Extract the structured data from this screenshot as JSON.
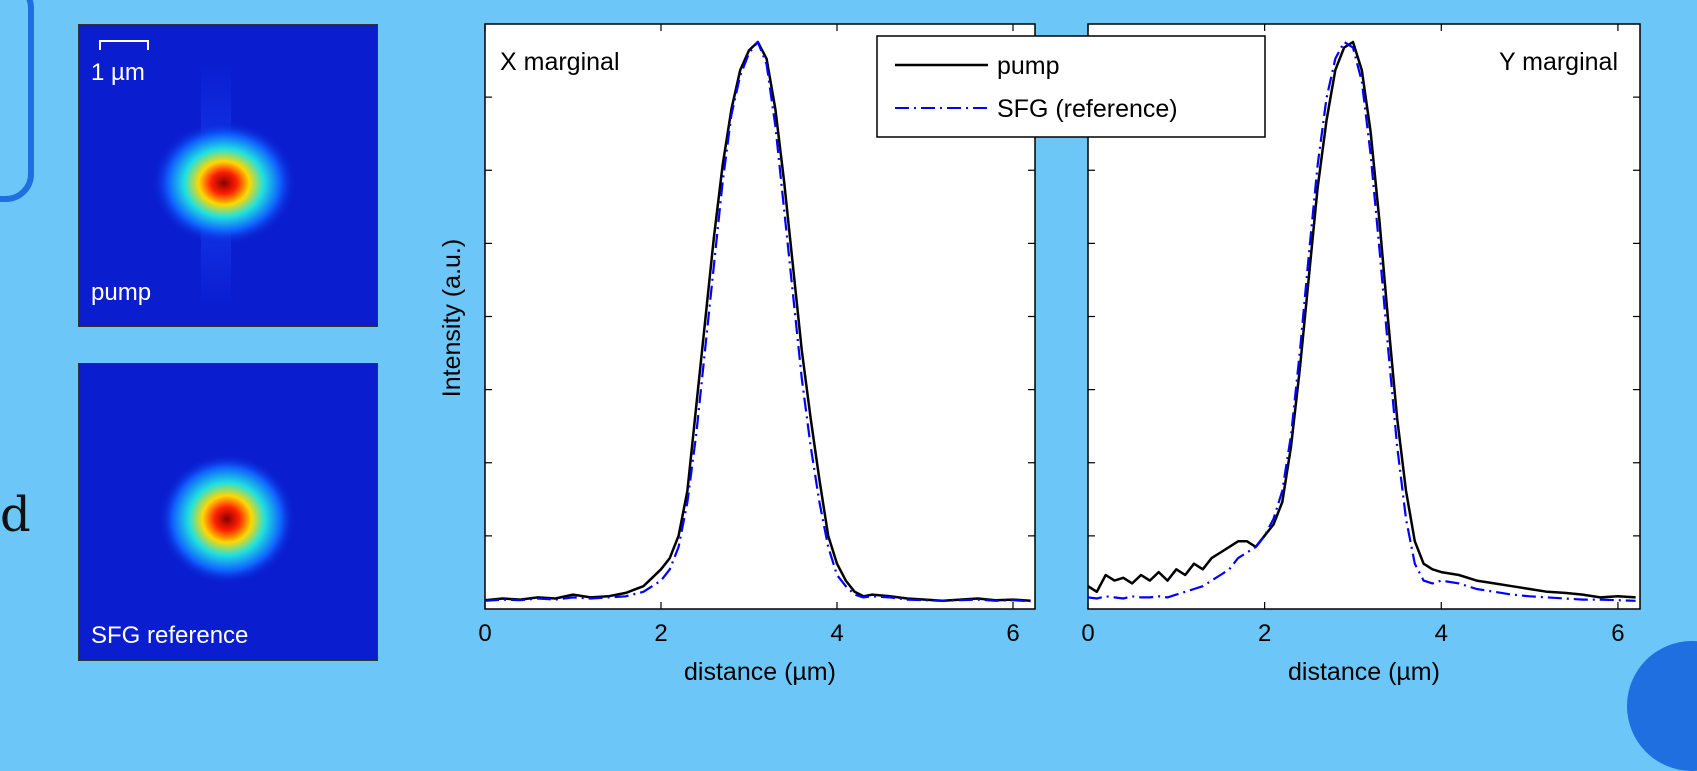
{
  "colors": {
    "background": "#6cc6f7",
    "pump": "#000000",
    "sfg": "#0000ff"
  },
  "slide_fragment": {
    "edge_letter": "d"
  },
  "images": {
    "pump": {
      "label": "pump",
      "scalebar_label": "1 µm"
    },
    "sfg": {
      "label": "SFG reference"
    }
  },
  "legend": {
    "pump": "pump",
    "sfg": "SFG (reference)"
  },
  "chart_data": [
    {
      "type": "line",
      "title": "X marginal",
      "xlabel": "distance (µm)",
      "ylabel": "Intensity (a.u.)",
      "xlim": [
        0,
        6.25
      ],
      "ylim": [
        0,
        1.0
      ],
      "xticks": [
        0,
        2,
        4,
        6
      ],
      "series": [
        {
          "name": "pump",
          "style": "solid",
          "x": [
            0.0,
            0.2,
            0.4,
            0.6,
            0.8,
            1.0,
            1.2,
            1.4,
            1.6,
            1.8,
            1.9,
            2.0,
            2.1,
            2.2,
            2.3,
            2.4,
            2.5,
            2.6,
            2.7,
            2.8,
            2.9,
            3.0,
            3.1,
            3.2,
            3.3,
            3.4,
            3.5,
            3.6,
            3.7,
            3.8,
            3.9,
            4.0,
            4.1,
            4.2,
            4.3,
            4.4,
            4.6,
            4.8,
            5.0,
            5.2,
            5.4,
            5.6,
            5.8,
            6.0,
            6.2
          ],
          "y": [
            0.005,
            0.008,
            0.006,
            0.01,
            0.008,
            0.015,
            0.01,
            0.012,
            0.018,
            0.03,
            0.045,
            0.06,
            0.08,
            0.12,
            0.2,
            0.35,
            0.5,
            0.65,
            0.78,
            0.88,
            0.95,
            0.985,
            1.0,
            0.97,
            0.88,
            0.75,
            0.6,
            0.45,
            0.33,
            0.22,
            0.12,
            0.07,
            0.04,
            0.02,
            0.012,
            0.015,
            0.012,
            0.008,
            0.006,
            0.004,
            0.006,
            0.008,
            0.005,
            0.006,
            0.004
          ]
        },
        {
          "name": "SFG (reference)",
          "style": "dashdot",
          "x": [
            0.0,
            0.2,
            0.4,
            0.6,
            0.8,
            1.0,
            1.2,
            1.4,
            1.6,
            1.8,
            1.9,
            2.0,
            2.1,
            2.2,
            2.3,
            2.4,
            2.5,
            2.6,
            2.7,
            2.8,
            2.9,
            3.0,
            3.1,
            3.2,
            3.3,
            3.4,
            3.5,
            3.6,
            3.7,
            3.8,
            3.9,
            4.0,
            4.1,
            4.2,
            4.3,
            4.4,
            4.6,
            4.8,
            5.0,
            5.2,
            5.4,
            5.6,
            5.8,
            6.0,
            6.2
          ],
          "y": [
            0.004,
            0.006,
            0.005,
            0.008,
            0.006,
            0.01,
            0.008,
            0.01,
            0.012,
            0.02,
            0.03,
            0.04,
            0.06,
            0.1,
            0.18,
            0.3,
            0.45,
            0.6,
            0.75,
            0.87,
            0.94,
            0.98,
            1.0,
            0.96,
            0.85,
            0.7,
            0.55,
            0.4,
            0.28,
            0.18,
            0.1,
            0.05,
            0.03,
            0.015,
            0.01,
            0.012,
            0.01,
            0.006,
            0.005,
            0.004,
            0.005,
            0.006,
            0.004,
            0.005,
            0.003
          ]
        }
      ]
    },
    {
      "type": "line",
      "title": "Y marginal",
      "xlabel": "distance (µm)",
      "ylabel": "",
      "xlim": [
        0,
        6.25
      ],
      "ylim": [
        0,
        1.0
      ],
      "xticks": [
        0,
        2,
        4,
        6
      ],
      "series": [
        {
          "name": "pump",
          "style": "solid",
          "x": [
            0.0,
            0.1,
            0.2,
            0.3,
            0.4,
            0.5,
            0.6,
            0.7,
            0.8,
            0.9,
            1.0,
            1.1,
            1.2,
            1.3,
            1.4,
            1.5,
            1.6,
            1.7,
            1.8,
            1.9,
            2.0,
            2.1,
            2.2,
            2.3,
            2.4,
            2.5,
            2.6,
            2.7,
            2.8,
            2.9,
            3.0,
            3.1,
            3.2,
            3.3,
            3.4,
            3.5,
            3.6,
            3.7,
            3.8,
            3.9,
            4.0,
            4.2,
            4.4,
            4.6,
            4.8,
            5.0,
            5.2,
            5.4,
            5.6,
            5.8,
            6.0,
            6.2
          ],
          "y": [
            0.03,
            0.02,
            0.05,
            0.04,
            0.045,
            0.035,
            0.05,
            0.04,
            0.055,
            0.04,
            0.06,
            0.05,
            0.07,
            0.06,
            0.08,
            0.09,
            0.1,
            0.11,
            0.11,
            0.1,
            0.12,
            0.14,
            0.18,
            0.28,
            0.42,
            0.58,
            0.74,
            0.86,
            0.95,
            0.99,
            1.0,
            0.95,
            0.84,
            0.68,
            0.5,
            0.33,
            0.2,
            0.11,
            0.07,
            0.06,
            0.055,
            0.05,
            0.04,
            0.035,
            0.03,
            0.025,
            0.02,
            0.018,
            0.015,
            0.01,
            0.012,
            0.01
          ]
        },
        {
          "name": "SFG (reference)",
          "style": "dashdot",
          "x": [
            0.0,
            0.1,
            0.2,
            0.3,
            0.4,
            0.5,
            0.6,
            0.7,
            0.8,
            0.9,
            1.0,
            1.1,
            1.2,
            1.3,
            1.4,
            1.5,
            1.6,
            1.7,
            1.8,
            1.9,
            2.0,
            2.1,
            2.2,
            2.3,
            2.4,
            2.5,
            2.6,
            2.7,
            2.8,
            2.9,
            3.0,
            3.1,
            3.2,
            3.3,
            3.4,
            3.5,
            3.6,
            3.7,
            3.8,
            3.9,
            4.0,
            4.2,
            4.4,
            4.6,
            4.8,
            5.0,
            5.2,
            5.4,
            5.6,
            5.8,
            6.0,
            6.2
          ],
          "y": [
            0.01,
            0.008,
            0.012,
            0.01,
            0.008,
            0.012,
            0.01,
            0.01,
            0.012,
            0.01,
            0.015,
            0.02,
            0.025,
            0.03,
            0.04,
            0.05,
            0.06,
            0.08,
            0.09,
            0.1,
            0.12,
            0.15,
            0.2,
            0.3,
            0.45,
            0.62,
            0.78,
            0.9,
            0.97,
            1.0,
            0.99,
            0.93,
            0.8,
            0.63,
            0.45,
            0.28,
            0.15,
            0.07,
            0.04,
            0.035,
            0.04,
            0.035,
            0.025,
            0.02,
            0.015,
            0.012,
            0.01,
            0.008,
            0.006,
            0.006,
            0.005,
            0.004
          ]
        }
      ]
    }
  ]
}
